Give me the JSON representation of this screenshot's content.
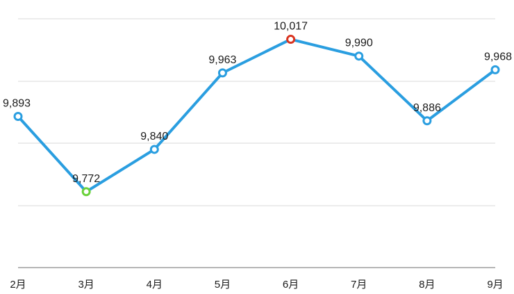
{
  "chart_data": {
    "type": "line",
    "title": "",
    "xlabel": "",
    "ylabel": "",
    "categories": [
      "2月",
      "3月",
      "4月",
      "5月",
      "6月",
      "7月",
      "8月",
      "9月"
    ],
    "series": [
      {
        "values": [
          9893,
          9772,
          9840,
          9963,
          10017,
          9990,
          9886,
          9968
        ],
        "labels": [
          "9,893",
          "9,772",
          "9,840",
          "9,963",
          "10,017",
          "9,990",
          "9,886",
          "9,968"
        ]
      }
    ],
    "ylim": [
      9650,
      10050
    ],
    "grid": true,
    "min_index": 1,
    "max_index": 4,
    "colors": {
      "line": "#2a9ee0",
      "marker_default": "#2a9ee0",
      "marker_min": "#6ad13a",
      "marker_max": "#d9331f",
      "grid": "#d9d9d9",
      "axis": "#8a8a8a",
      "text": "#1a1a1a"
    }
  }
}
